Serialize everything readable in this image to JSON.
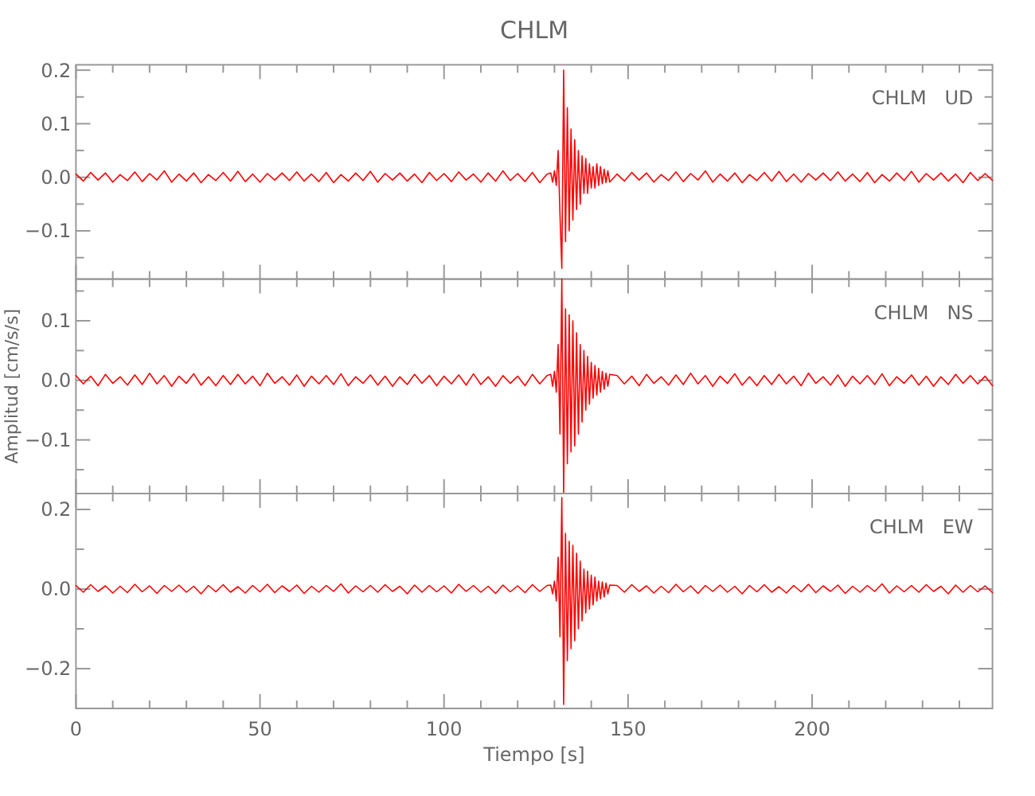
{
  "chart_data": [
    {
      "type": "line",
      "title": "CHLM",
      "annotations": [
        "CHLM   UD"
      ],
      "tick_labels": "y",
      "xlim": [
        0,
        249
      ],
      "ylim": [
        -0.19,
        0.21
      ],
      "xticks": [
        0,
        {
          "value": 10,
          "label": null
        },
        {
          "value": 20,
          "label": null
        },
        {
          "value": 30,
          "label": null
        },
        {
          "value": 40,
          "label": null
        },
        50,
        {
          "value": 60,
          "label": null
        },
        {
          "value": 70,
          "label": null
        },
        {
          "value": 80,
          "label": null
        },
        {
          "value": 90,
          "label": null
        },
        100,
        {
          "value": 110,
          "label": null
        },
        {
          "value": 120,
          "label": null
        },
        {
          "value": 130,
          "label": null
        },
        {
          "value": 140,
          "label": null
        },
        150,
        {
          "value": 160,
          "label": null
        },
        {
          "value": 170,
          "label": null
        },
        {
          "value": 180,
          "label": null
        },
        {
          "value": 190,
          "label": null
        },
        200,
        {
          "value": 210,
          "label": null
        },
        {
          "value": 220,
          "label": null
        },
        {
          "value": 230,
          "label": null
        },
        {
          "value": 240,
          "label": null
        }
      ],
      "yticks": [
        {
          "value": -0.15,
          "label": null
        },
        {
          "value": -0.1,
          "label": "−0.1"
        },
        {
          "value": -0.05,
          "label": null
        },
        {
          "value": 0,
          "label": "0.0"
        },
        {
          "value": 0.05,
          "label": null
        },
        {
          "value": 0.1,
          "label": "0.1"
        },
        {
          "value": 0.15,
          "label": null
        },
        {
          "value": 0.2,
          "label": "0.2"
        }
      ],
      "x": [
        0,
        2,
        4,
        6,
        8,
        10,
        12,
        14,
        16,
        18,
        20,
        22,
        24,
        26,
        28,
        30,
        32,
        34,
        36,
        38,
        40,
        42,
        44,
        46,
        48,
        50,
        52,
        54,
        56,
        58,
        60,
        62,
        64,
        66,
        68,
        70,
        72,
        74,
        76,
        78,
        80,
        82,
        84,
        86,
        88,
        90,
        92,
        94,
        96,
        98,
        100,
        102,
        104,
        106,
        108,
        110,
        112,
        114,
        116,
        118,
        120,
        122,
        124,
        126,
        128,
        129,
        129.5,
        130,
        130.5,
        131,
        131.5,
        132,
        132.5,
        133,
        133.5,
        134,
        134.5,
        135,
        135.5,
        136,
        136.5,
        137,
        137.5,
        138,
        138.5,
        139,
        139.5,
        140,
        140.5,
        141,
        141.5,
        142,
        142.5,
        143,
        143.5,
        144,
        144.5,
        145,
        147,
        149,
        151,
        153,
        155,
        157,
        159,
        161,
        163,
        165,
        167,
        169,
        171,
        173,
        175,
        177,
        179,
        181,
        183,
        185,
        187,
        189,
        191,
        193,
        195,
        197,
        199,
        201,
        203,
        205,
        207,
        209,
        211,
        213,
        215,
        217,
        219,
        221,
        223,
        225,
        227,
        229,
        231,
        233,
        235,
        237,
        239,
        241,
        243,
        245,
        247,
        249
      ],
      "series": [
        {
          "color": "#ff0000",
          "values": [
            0.006,
            -0.007,
            0.009,
            -0.005,
            0.008,
            -0.009,
            0.005,
            -0.006,
            0.01,
            -0.008,
            0.007,
            -0.005,
            0.012,
            -0.009,
            0.006,
            -0.007,
            0.008,
            -0.01,
            0.005,
            -0.006,
            0.009,
            -0.007,
            0.011,
            -0.008,
            0.006,
            -0.009,
            0.007,
            -0.005,
            0.008,
            -0.006,
            0.01,
            -0.007,
            0.006,
            -0.008,
            0.009,
            -0.01,
            0.005,
            -0.007,
            0.008,
            -0.006,
            0.011,
            -0.009,
            0.007,
            -0.005,
            0.008,
            -0.007,
            0.006,
            -0.01,
            0.009,
            -0.006,
            0.007,
            -0.008,
            0.01,
            -0.005,
            0.006,
            -0.009,
            0.008,
            -0.007,
            0.012,
            -0.006,
            0.007,
            -0.008,
            0.009,
            -0.01,
            0.006,
            0.008,
            -0.009,
            0.012,
            -0.015,
            0.05,
            -0.07,
            -0.17,
            0.2,
            -0.12,
            0.13,
            -0.1,
            0.09,
            -0.08,
            0.07,
            -0.06,
            0.05,
            -0.05,
            0.04,
            -0.03,
            0.035,
            -0.03,
            0.025,
            -0.02,
            0.02,
            -0.02,
            0.025,
            -0.015,
            0.02,
            -0.012,
            0.015,
            -0.01,
            0.012,
            -0.009,
            0.006,
            -0.007,
            0.009,
            -0.005,
            0.008,
            -0.009,
            0.005,
            -0.006,
            0.01,
            -0.008,
            0.007,
            -0.005,
            0.012,
            -0.009,
            0.006,
            -0.007,
            0.008,
            -0.01,
            0.005,
            -0.006,
            0.009,
            -0.007,
            0.011,
            -0.008,
            0.006,
            -0.009,
            0.007,
            -0.005,
            0.008,
            -0.006,
            0.01,
            -0.007,
            0.006,
            -0.008,
            0.009,
            -0.01,
            0.005,
            -0.007,
            0.008,
            -0.006,
            0.011,
            -0.009,
            0.007,
            -0.005,
            0.008,
            -0.007,
            0.006,
            -0.01,
            0.009,
            -0.006,
            0.007,
            -0.006
          ]
        }
      ]
    },
    {
      "type": "line",
      "ylabel": "Amplitud [cm/s/s]",
      "annotations": [
        "CHLM   NS"
      ],
      "tick_labels": "y",
      "xlim": [
        0,
        249
      ],
      "ylim": [
        -0.19,
        0.17
      ],
      "xticks": [
        0,
        {
          "value": 10,
          "label": null
        },
        {
          "value": 20,
          "label": null
        },
        {
          "value": 30,
          "label": null
        },
        {
          "value": 40,
          "label": null
        },
        50,
        {
          "value": 60,
          "label": null
        },
        {
          "value": 70,
          "label": null
        },
        {
          "value": 80,
          "label": null
        },
        {
          "value": 90,
          "label": null
        },
        100,
        {
          "value": 110,
          "label": null
        },
        {
          "value": 120,
          "label": null
        },
        {
          "value": 130,
          "label": null
        },
        {
          "value": 140,
          "label": null
        },
        150,
        {
          "value": 160,
          "label": null
        },
        {
          "value": 170,
          "label": null
        },
        {
          "value": 180,
          "label": null
        },
        {
          "value": 190,
          "label": null
        },
        200,
        {
          "value": 210,
          "label": null
        },
        {
          "value": 220,
          "label": null
        },
        {
          "value": 230,
          "label": null
        },
        {
          "value": 240,
          "label": null
        }
      ],
      "yticks": [
        {
          "value": -0.15,
          "label": null
        },
        {
          "value": -0.1,
          "label": "−0.1"
        },
        {
          "value": -0.05,
          "label": null
        },
        {
          "value": 0,
          "label": "0.0"
        },
        {
          "value": 0.05,
          "label": null
        },
        {
          "value": 0.1,
          "label": "0.1"
        },
        {
          "value": 0.15,
          "label": null
        }
      ],
      "x": [
        0,
        2,
        4,
        6,
        8,
        10,
        12,
        14,
        16,
        18,
        20,
        22,
        24,
        26,
        28,
        30,
        32,
        34,
        36,
        38,
        40,
        42,
        44,
        46,
        48,
        50,
        52,
        54,
        56,
        58,
        60,
        62,
        64,
        66,
        68,
        70,
        72,
        74,
        76,
        78,
        80,
        82,
        84,
        86,
        88,
        90,
        92,
        94,
        96,
        98,
        100,
        102,
        104,
        106,
        108,
        110,
        112,
        114,
        116,
        118,
        120,
        122,
        124,
        126,
        128,
        129,
        129.5,
        130,
        130.5,
        131,
        131.5,
        132,
        132.5,
        133,
        133.5,
        134,
        134.5,
        135,
        135.5,
        136,
        136.5,
        137,
        137.5,
        138,
        138.5,
        139,
        139.5,
        140,
        140.5,
        141,
        141.5,
        142,
        142.5,
        143,
        143.5,
        144,
        144.5,
        145,
        147,
        149,
        151,
        153,
        155,
        157,
        159,
        161,
        163,
        165,
        167,
        169,
        171,
        173,
        175,
        177,
        179,
        181,
        183,
        185,
        187,
        189,
        191,
        193,
        195,
        197,
        199,
        201,
        203,
        205,
        207,
        209,
        211,
        213,
        215,
        217,
        219,
        221,
        223,
        225,
        227,
        229,
        231,
        233,
        235,
        237,
        239,
        241,
        243,
        245,
        247,
        249
      ],
      "series": [
        {
          "color": "#ff0000",
          "values": [
            0.008,
            -0.006,
            0.007,
            -0.009,
            0.01,
            -0.005,
            0.006,
            -0.008,
            0.009,
            -0.007,
            0.012,
            -0.006,
            0.008,
            -0.01,
            0.007,
            -0.005,
            0.011,
            -0.008,
            0.006,
            -0.009,
            0.008,
            -0.007,
            0.01,
            -0.006,
            0.007,
            -0.009,
            0.012,
            -0.005,
            0.006,
            -0.008,
            0.009,
            -0.01,
            0.007,
            -0.006,
            0.008,
            -0.007,
            0.011,
            -0.009,
            0.006,
            -0.005,
            0.009,
            -0.008,
            0.007,
            -0.01,
            0.006,
            -0.007,
            0.01,
            -0.005,
            0.008,
            -0.009,
            0.007,
            -0.006,
            0.009,
            -0.008,
            0.011,
            -0.007,
            0.006,
            -0.01,
            0.008,
            -0.005,
            0.007,
            -0.009,
            0.01,
            -0.006,
            0.008,
            0.01,
            -0.01,
            0.015,
            -0.02,
            0.06,
            -0.09,
            0.17,
            -0.19,
            0.12,
            -0.14,
            0.11,
            -0.12,
            0.1,
            -0.11,
            0.08,
            -0.09,
            0.06,
            -0.07,
            0.05,
            -0.05,
            0.04,
            -0.04,
            0.03,
            -0.03,
            0.025,
            -0.025,
            0.02,
            -0.02,
            0.015,
            -0.015,
            0.012,
            -0.01,
            0.01,
            0.008,
            -0.006,
            0.007,
            -0.009,
            0.01,
            -0.005,
            0.006,
            -0.008,
            0.009,
            -0.007,
            0.012,
            -0.006,
            0.008,
            -0.01,
            0.007,
            -0.005,
            0.011,
            -0.008,
            0.006,
            -0.009,
            0.008,
            -0.007,
            0.01,
            -0.006,
            0.007,
            -0.009,
            0.012,
            -0.005,
            0.006,
            -0.008,
            0.009,
            -0.01,
            0.007,
            -0.006,
            0.008,
            -0.007,
            0.011,
            -0.009,
            0.006,
            -0.005,
            0.009,
            -0.008,
            0.007,
            -0.01,
            0.006,
            -0.007,
            0.01,
            -0.005,
            0.008,
            -0.006,
            0.007,
            -0.009
          ]
        }
      ]
    },
    {
      "type": "line",
      "xlabel": "Tiempo [s]",
      "annotations": [
        "CHLM   EW"
      ],
      "xlim": [
        0,
        249
      ],
      "ylim": [
        -0.3,
        0.24
      ],
      "xticks": [
        0,
        {
          "value": 10,
          "label": null
        },
        {
          "value": 20,
          "label": null
        },
        {
          "value": 30,
          "label": null
        },
        {
          "value": 40,
          "label": null
        },
        50,
        {
          "value": 60,
          "label": null
        },
        {
          "value": 70,
          "label": null
        },
        {
          "value": 80,
          "label": null
        },
        {
          "value": 90,
          "label": null
        },
        100,
        {
          "value": 110,
          "label": null
        },
        {
          "value": 120,
          "label": null
        },
        {
          "value": 130,
          "label": null
        },
        {
          "value": 140,
          "label": null
        },
        150,
        {
          "value": 160,
          "label": null
        },
        {
          "value": 170,
          "label": null
        },
        {
          "value": 180,
          "label": null
        },
        {
          "value": 190,
          "label": null
        },
        200,
        {
          "value": 210,
          "label": null
        },
        {
          "value": 220,
          "label": null
        },
        {
          "value": 230,
          "label": null
        },
        {
          "value": 240,
          "label": null
        }
      ],
      "yticks": [
        {
          "value": -0.2,
          "label": "−0.2"
        },
        {
          "value": -0.1,
          "label": null
        },
        {
          "value": 0,
          "label": "0.0"
        },
        {
          "value": 0.1,
          "label": null
        },
        {
          "value": 0.2,
          "label": "0.2"
        }
      ],
      "x": [
        0,
        2,
        4,
        6,
        8,
        10,
        12,
        14,
        16,
        18,
        20,
        22,
        24,
        26,
        28,
        30,
        32,
        34,
        36,
        38,
        40,
        42,
        44,
        46,
        48,
        50,
        52,
        54,
        56,
        58,
        60,
        62,
        64,
        66,
        68,
        70,
        72,
        74,
        76,
        78,
        80,
        82,
        84,
        86,
        88,
        90,
        92,
        94,
        96,
        98,
        100,
        102,
        104,
        106,
        108,
        110,
        112,
        114,
        116,
        118,
        120,
        122,
        124,
        126,
        128,
        129,
        129.5,
        130,
        130.5,
        131,
        131.5,
        132,
        132.5,
        133,
        133.5,
        134,
        134.5,
        135,
        135.5,
        136,
        136.5,
        137,
        137.5,
        138,
        138.5,
        139,
        139.5,
        140,
        140.5,
        141,
        141.5,
        142,
        142.5,
        143,
        143.5,
        144,
        144.5,
        145,
        147,
        149,
        151,
        153,
        155,
        157,
        159,
        161,
        163,
        165,
        167,
        169,
        171,
        173,
        175,
        177,
        179,
        181,
        183,
        185,
        187,
        189,
        191,
        193,
        195,
        197,
        199,
        201,
        203,
        205,
        207,
        209,
        211,
        213,
        215,
        217,
        219,
        221,
        223,
        225,
        227,
        229,
        231,
        233,
        235,
        237,
        239,
        241,
        243,
        245,
        247,
        249
      ],
      "series": [
        {
          "color": "#ff0000",
          "values": [
            0.009,
            -0.008,
            0.011,
            -0.006,
            0.008,
            -0.01,
            0.007,
            -0.009,
            0.012,
            -0.007,
            0.008,
            -0.011,
            0.009,
            -0.006,
            0.01,
            -0.008,
            0.007,
            -0.012,
            0.009,
            -0.007,
            0.011,
            -0.008,
            0.006,
            -0.01,
            0.009,
            -0.007,
            0.012,
            -0.009,
            0.008,
            -0.006,
            0.01,
            -0.011,
            0.007,
            -0.008,
            0.009,
            -0.006,
            0.013,
            -0.01,
            0.008,
            -0.007,
            0.009,
            -0.008,
            0.011,
            -0.006,
            0.007,
            -0.012,
            0.01,
            -0.008,
            0.009,
            -0.007,
            0.008,
            -0.01,
            0.012,
            -0.006,
            0.009,
            -0.008,
            0.007,
            -0.011,
            0.01,
            -0.007,
            0.008,
            -0.009,
            0.011,
            -0.006,
            0.009,
            0.01,
            -0.012,
            0.02,
            -0.03,
            0.08,
            -0.12,
            0.23,
            -0.29,
            0.14,
            -0.18,
            0.12,
            -0.15,
            0.11,
            -0.13,
            0.09,
            -0.1,
            0.07,
            -0.08,
            0.05,
            -0.06,
            0.045,
            -0.05,
            0.035,
            -0.04,
            0.03,
            -0.03,
            0.02,
            -0.025,
            0.018,
            -0.02,
            0.015,
            -0.012,
            0.01,
            0.009,
            -0.008,
            0.011,
            -0.006,
            0.008,
            -0.01,
            0.007,
            -0.009,
            0.012,
            -0.007,
            0.008,
            -0.011,
            0.009,
            -0.006,
            0.01,
            -0.008,
            0.007,
            -0.012,
            0.009,
            -0.007,
            0.011,
            -0.008,
            0.006,
            -0.01,
            0.009,
            -0.007,
            0.012,
            -0.009,
            0.008,
            -0.006,
            0.01,
            -0.011,
            0.007,
            -0.008,
            0.009,
            -0.006,
            0.013,
            -0.01,
            0.008,
            -0.007,
            0.009,
            -0.008,
            0.011,
            -0.006,
            0.007,
            -0.012,
            0.01,
            -0.008,
            0.009,
            -0.007,
            0.008,
            -0.009
          ]
        }
      ]
    }
  ]
}
